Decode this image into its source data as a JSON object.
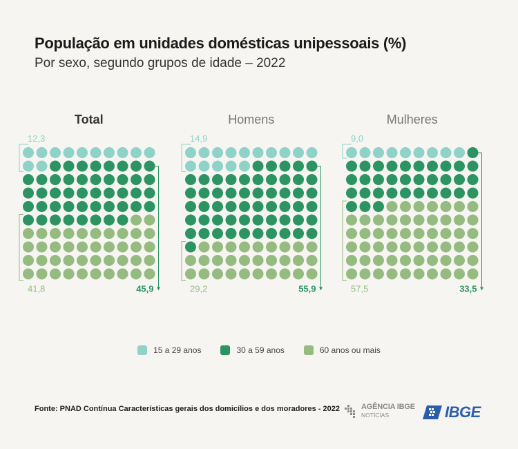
{
  "title": "População em unidades domésticas unipessoais (%)",
  "subtitle": "Por sexo, segundo grupos de idade – 2022",
  "colors": {
    "young": "#8fd3c8",
    "adult": "#2c9462",
    "senior": "#95bb80",
    "panel_title_active": "#333333",
    "panel_title_inactive": "#777777"
  },
  "chart_data": {
    "type": "waffle",
    "grid": "10x10",
    "unit": "%",
    "categories": [
      "15 a 29 anos",
      "30 a 59 anos",
      "60 anos ou mais"
    ],
    "panels": [
      {
        "name": "Total",
        "bold": true,
        "values": [
          12.3,
          45.9,
          41.8
        ],
        "labels": [
          "12,3",
          "45,9",
          "41,8"
        ]
      },
      {
        "name": "Homens",
        "bold": false,
        "values": [
          14.9,
          55.9,
          29.2
        ],
        "labels": [
          "14,9",
          "55,9",
          "29,2"
        ]
      },
      {
        "name": "Mulheres",
        "bold": false,
        "values": [
          9.0,
          33.5,
          57.5
        ],
        "labels": [
          "9,0",
          "33,5",
          "57,5"
        ]
      }
    ]
  },
  "legend": [
    {
      "label": "15 a 29 anos",
      "color": "#8fd3c8"
    },
    {
      "label": "30 a 59 anos",
      "color": "#2c9462"
    },
    {
      "label": "60 anos ou mais",
      "color": "#95bb80"
    }
  ],
  "source": "Fonte: PNAD Contínua Características gerais dos domicílios e dos moradores - 2022",
  "agencia_logo": {
    "main": "AGÊNCIA IBGE",
    "sub": "NOTÍCIAS"
  },
  "ibge_logo": "IBGE"
}
